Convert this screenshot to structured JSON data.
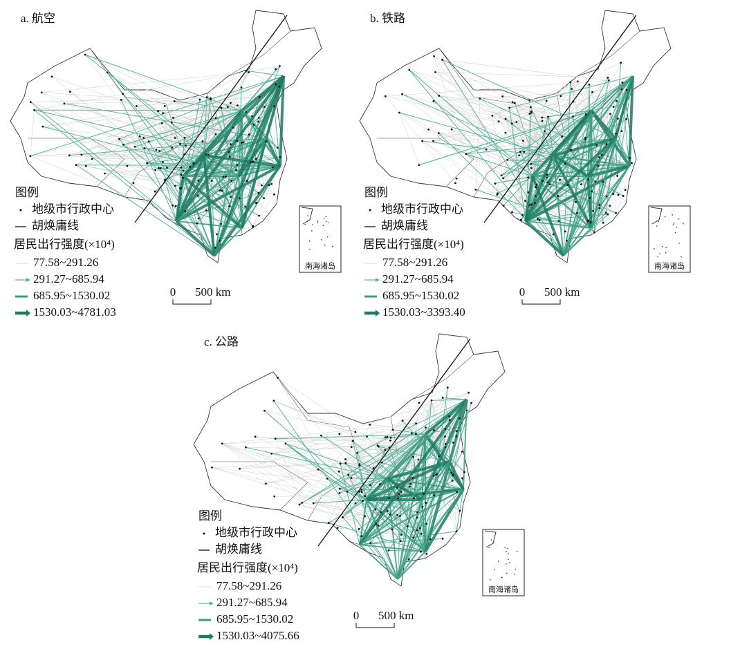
{
  "panels": [
    {
      "title": "a. 航空",
      "legend": {
        "title": "图例",
        "items": [
          "地级市行政中心",
          "胡焕庸线"
        ],
        "flow_title": "居民出行强度(×10⁴)",
        "classes": [
          "77.58~291.26",
          "291.27~685.94",
          "685.95~1530.02",
          "1530.03~4781.03"
        ]
      },
      "scale": {
        "zero": "0",
        "length": "500 km"
      },
      "inset_label": "南海诸岛"
    },
    {
      "title": "b. 铁路",
      "legend": {
        "title": "图例",
        "items": [
          "地级市行政中心",
          "胡焕庸线"
        ],
        "flow_title": "居民出行强度(×10⁴)",
        "classes": [
          "77.58~291.26",
          "291.27~685.94",
          "685.95~1530.02",
          "1530.03~3393.40"
        ]
      },
      "scale": {
        "zero": "0",
        "length": "500 km"
      },
      "inset_label": "南海诸岛"
    },
    {
      "title": "c. 公路",
      "legend": {
        "title": "图例",
        "items": [
          "地级市行政中心",
          "胡焕庸线"
        ],
        "flow_title": "居民出行强度(×10⁴)",
        "classes": [
          "77.58~291.26",
          "291.27~685.94",
          "685.95~1530.02",
          "1530.03~4075.66"
        ]
      },
      "scale": {
        "zero": "0",
        "length": "500 km"
      },
      "inset_label": "南海诸岛"
    }
  ]
}
